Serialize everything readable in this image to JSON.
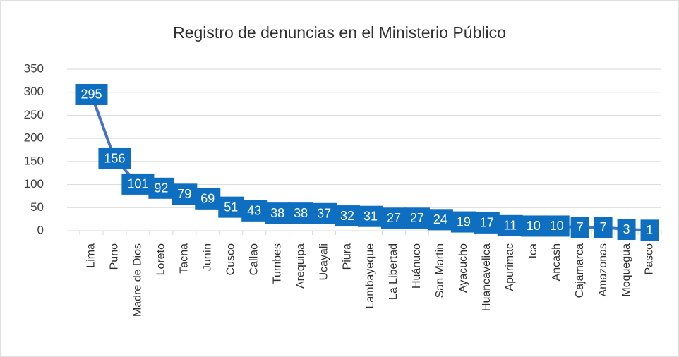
{
  "chart_data": {
    "type": "line",
    "title": "Registro de denuncias en el Ministerio Público",
    "categories": [
      "Lima",
      "Puno",
      "Madre de Dios",
      "Loreto",
      "Tacna",
      "Junín",
      "Cusco",
      "Callao",
      "Tumbes",
      "Arequipa",
      "Ucayali",
      "Piura",
      "Lambayeque",
      "La Libertad",
      "Huánuco",
      "San Martin",
      "Ayacucho",
      "Huancavelica",
      "Apurimac",
      "Ica",
      "Ancash",
      "Cajamarca",
      "Amazonas",
      "Moquegua",
      "Pasco"
    ],
    "values": [
      295,
      156,
      101,
      92,
      79,
      69,
      51,
      43,
      38,
      38,
      37,
      32,
      31,
      27,
      27,
      24,
      19,
      17,
      11,
      10,
      10,
      7,
      7,
      3,
      1
    ],
    "color": "#4472c4",
    "label_color": "#0e6fc1",
    "ylim": [
      0,
      350
    ],
    "yticks": [
      0,
      50,
      100,
      150,
      200,
      250,
      300,
      350
    ],
    "grid": true
  }
}
